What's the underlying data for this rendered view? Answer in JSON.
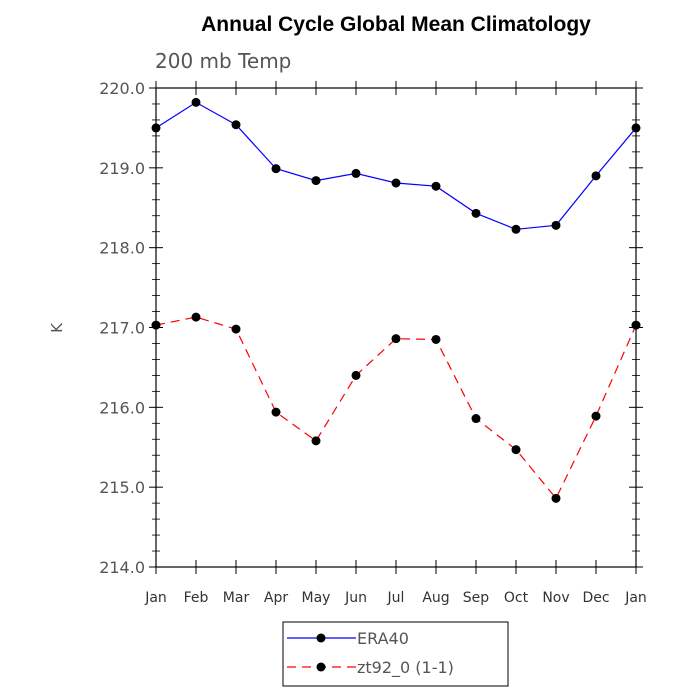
{
  "chart_data": {
    "type": "line",
    "title": "Annual Cycle Global Mean Climatology",
    "subtitle": "200 mb Temp",
    "ylabel": "K",
    "xlabel": "",
    "categories": [
      "Jan",
      "Feb",
      "Mar",
      "Apr",
      "May",
      "Jun",
      "Jul",
      "Aug",
      "Sep",
      "Oct",
      "Nov",
      "Dec",
      "Jan"
    ],
    "ylim": [
      214.0,
      220.0
    ],
    "yticks": [
      "214.0",
      "215.0",
      "216.0",
      "217.0",
      "218.0",
      "219.0",
      "220.0"
    ],
    "grid": false,
    "legend_position": "bottom-center",
    "series": [
      {
        "name": "ERA40",
        "color": "#0000ff",
        "line_style": "solid",
        "marker": "filled-circle",
        "values": [
          219.5,
          219.82,
          219.54,
          218.99,
          218.84,
          218.93,
          218.81,
          218.77,
          218.43,
          218.23,
          218.28,
          218.9,
          219.5
        ]
      },
      {
        "name": "zt92_0 (1-1)",
        "color": "#ff0000",
        "line_style": "dashed",
        "marker": "filled-circle",
        "values": [
          217.03,
          217.13,
          216.98,
          215.94,
          215.58,
          216.4,
          216.86,
          216.85,
          215.86,
          215.47,
          214.86,
          215.89,
          217.03
        ]
      }
    ]
  }
}
